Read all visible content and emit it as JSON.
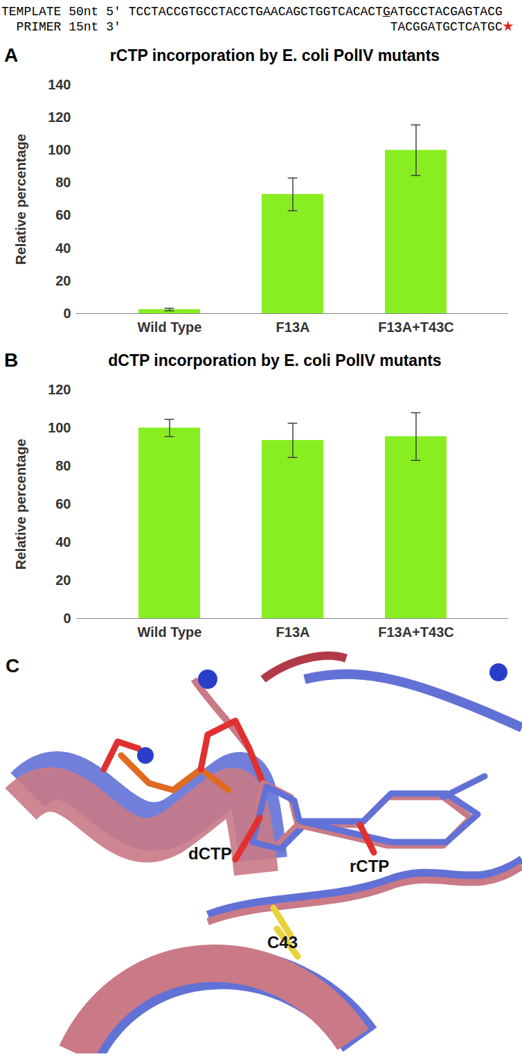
{
  "header": {
    "template_label": "TEMPLATE 50nt 5'",
    "template": "TCCTACCGTGCCTACCTGAACAGCTGGTCACACTGATGCCTACGAGTACG",
    "underlined_base": 35,
    "primer_label": "PRIMER 15nt 3'",
    "primer": "TACGGATGCTCATGC"
  },
  "chart_data": [
    {
      "type": "bar",
      "panel": "A",
      "title": "rCTP incorporation by E. coli PolIV mutants",
      "categories": [
        "Wild Type",
        "F13A",
        "F13A+T43C"
      ],
      "values": [
        2.5,
        73,
        100
      ],
      "error": [
        0.8,
        10,
        15.5
      ],
      "color": "#88ee22",
      "y_label": "Relative percentage",
      "ylim": [
        0,
        140
      ],
      "yticks": [
        0,
        20,
        40,
        60,
        80,
        100,
        120,
        140
      ],
      "grid": false
    },
    {
      "type": "bar",
      "panel": "B",
      "title": "dCTP incorporation by E. coli PolIV mutants",
      "categories": [
        "Wild Type",
        "F13A",
        "F13A+T43C"
      ],
      "values": [
        100,
        93.5,
        95.5
      ],
      "error": [
        4.5,
        9,
        12.5
      ],
      "color": "#88ee22",
      "y_label": "Relative percentage",
      "ylim": [
        0,
        120
      ],
      "yticks": [
        0,
        20,
        40,
        60,
        80,
        100,
        120
      ],
      "grid": false
    }
  ],
  "panel_c": {
    "panel": "C",
    "labels": [
      "dCTP",
      "rCTP",
      "C43"
    ]
  }
}
